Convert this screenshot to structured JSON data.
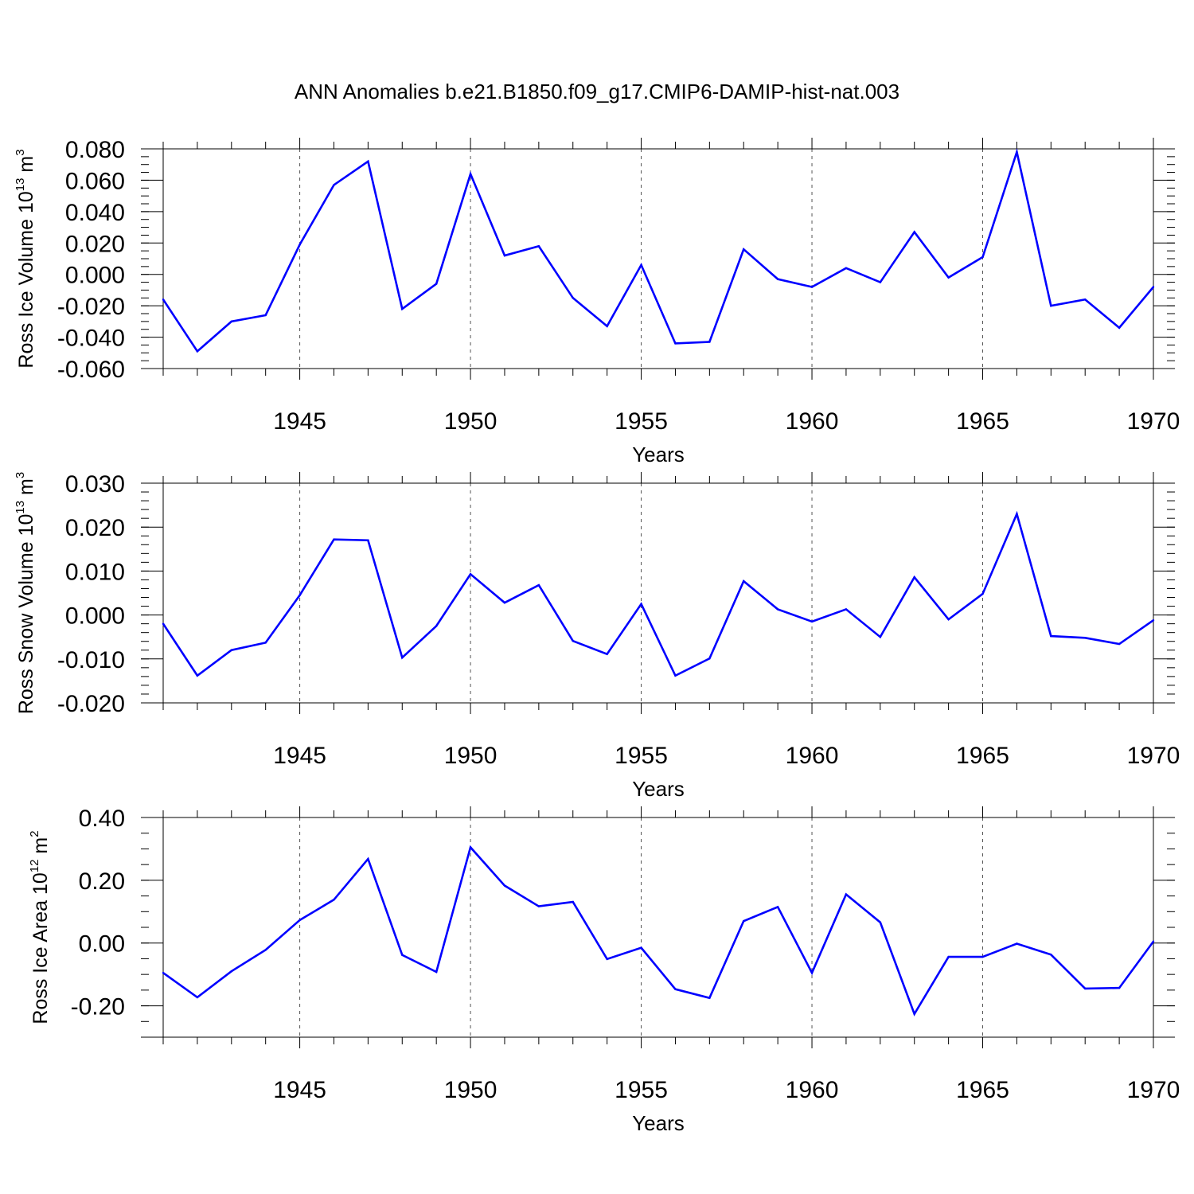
{
  "title": "ANN Anomalies b.e21.B1850.f09_g17.CMIP6-DAMIP-hist-nat.003",
  "colors": {
    "line": "#0000ff",
    "axis": "#000000",
    "grid": "#555555"
  },
  "chart_data": [
    {
      "type": "line",
      "ylabel": {
        "main": "Ross Ice Volume 10",
        "exp": "13",
        "unit": " m",
        "unit_exp": "3"
      },
      "xlabel": "Years",
      "xlim": [
        1941,
        1970
      ],
      "ylim": [
        -0.06,
        0.08
      ],
      "yticks": [
        -0.06,
        -0.04,
        -0.02,
        0.0,
        0.02,
        0.04,
        0.06,
        0.08
      ],
      "ytick_labels": [
        "-0.060",
        "-0.040",
        "-0.020",
        "0.000",
        "0.020",
        "0.040",
        "0.060",
        "0.080"
      ],
      "yminor_step": 0.005,
      "xticks": [
        1945,
        1950,
        1955,
        1960,
        1965,
        1970
      ],
      "xtick_labels": [
        "1945",
        "1950",
        "1955",
        "1960",
        "1965",
        "1970"
      ],
      "grid_x": [
        1945,
        1950,
        1955,
        1960,
        1965
      ],
      "x": [
        1941,
        1942,
        1943,
        1944,
        1945,
        1946,
        1947,
        1948,
        1949,
        1950,
        1951,
        1952,
        1953,
        1954,
        1955,
        1956,
        1957,
        1958,
        1959,
        1960,
        1961,
        1962,
        1963,
        1964,
        1965,
        1966,
        1967,
        1968,
        1969,
        1970
      ],
      "values": [
        -0.016,
        -0.049,
        -0.03,
        -0.026,
        0.019,
        0.057,
        0.072,
        -0.022,
        -0.006,
        0.064,
        0.012,
        0.018,
        -0.015,
        -0.033,
        0.006,
        -0.044,
        -0.043,
        0.016,
        -0.003,
        -0.008,
        0.004,
        -0.005,
        0.027,
        -0.002,
        0.011,
        0.078,
        -0.02,
        -0.016,
        -0.034,
        -0.008
      ]
    },
    {
      "type": "line",
      "ylabel": {
        "main": "Ross Snow Volume 10",
        "exp": "13",
        "unit": " m",
        "unit_exp": "3"
      },
      "xlabel": "Years",
      "xlim": [
        1941,
        1970
      ],
      "ylim": [
        -0.02,
        0.03
      ],
      "yticks": [
        -0.02,
        -0.01,
        0.0,
        0.01,
        0.02,
        0.03
      ],
      "ytick_labels": [
        "-0.020",
        "-0.010",
        "0.000",
        "0.010",
        "0.020",
        "0.030"
      ],
      "yminor_step": 0.002,
      "xticks": [
        1945,
        1950,
        1955,
        1960,
        1965,
        1970
      ],
      "xtick_labels": [
        "1945",
        "1950",
        "1955",
        "1960",
        "1965",
        "1970"
      ],
      "grid_x": [
        1945,
        1950,
        1955,
        1960,
        1965
      ],
      "x": [
        1941,
        1942,
        1943,
        1944,
        1945,
        1946,
        1947,
        1948,
        1949,
        1950,
        1951,
        1952,
        1953,
        1954,
        1955,
        1956,
        1957,
        1958,
        1959,
        1960,
        1961,
        1962,
        1963,
        1964,
        1965,
        1966,
        1967,
        1968,
        1969,
        1970
      ],
      "values": [
        -0.002,
        -0.0138,
        -0.008,
        -0.0063,
        0.0045,
        0.0172,
        0.017,
        -0.0097,
        -0.0025,
        0.0093,
        0.0028,
        0.0068,
        -0.0059,
        -0.0089,
        0.0025,
        -0.0138,
        -0.0099,
        0.0077,
        0.0013,
        -0.0015,
        0.0013,
        -0.005,
        0.0086,
        -0.001,
        0.0048,
        0.023,
        -0.0048,
        -0.0052,
        -0.0066,
        -0.0012
      ]
    },
    {
      "type": "line",
      "ylabel": {
        "main": "Ross Ice Area 10",
        "exp": "12",
        "unit": " m",
        "unit_exp": "2"
      },
      "xlabel": "Years",
      "xlim": [
        1941,
        1970
      ],
      "ylim": [
        -0.3,
        0.4
      ],
      "yticks": [
        -0.2,
        0.0,
        0.2,
        0.4
      ],
      "ytick_labels": [
        "-0.20",
        "0.00",
        "0.20",
        "0.40"
      ],
      "yminor_step": 0.05,
      "xticks": [
        1945,
        1950,
        1955,
        1960,
        1965,
        1970
      ],
      "xtick_labels": [
        "1945",
        "1950",
        "1955",
        "1960",
        "1965",
        "1970"
      ],
      "grid_x": [
        1945,
        1950,
        1955,
        1960,
        1965
      ],
      "x": [
        1941,
        1942,
        1943,
        1944,
        1945,
        1946,
        1947,
        1948,
        1949,
        1950,
        1951,
        1952,
        1953,
        1954,
        1955,
        1956,
        1957,
        1958,
        1959,
        1960,
        1961,
        1962,
        1963,
        1964,
        1965,
        1966,
        1967,
        1968,
        1969,
        1970
      ],
      "values": [
        -0.095,
        -0.173,
        -0.09,
        -0.022,
        0.073,
        0.138,
        0.268,
        -0.038,
        -0.092,
        0.305,
        0.183,
        0.117,
        0.131,
        -0.051,
        -0.015,
        -0.147,
        -0.175,
        0.07,
        0.115,
        -0.095,
        0.155,
        0.066,
        -0.226,
        -0.044,
        -0.044,
        -0.002,
        -0.037,
        -0.145,
        -0.143,
        0.005
      ]
    }
  ]
}
